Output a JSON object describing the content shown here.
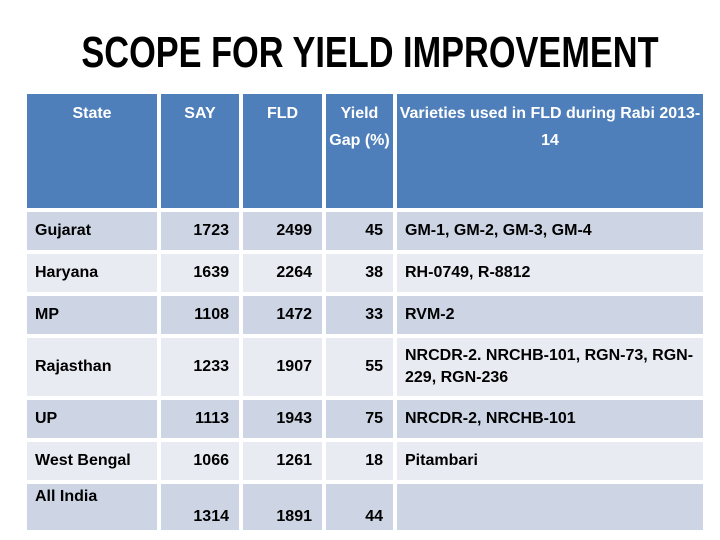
{
  "slide": {
    "title": "SCOPE FOR YIELD IMPROVEMENT"
  },
  "table": {
    "header": {
      "state": "State",
      "say": "SAY",
      "fld": "FLD",
      "yield_gap": "Yield Gap (%)",
      "varieties": "Varieties used in FLD during Rabi 2013-14"
    },
    "rows": [
      {
        "state": "Gujarat",
        "say": "1723",
        "fld": "2499",
        "yield_gap": "45",
        "varieties": "GM-1, GM-2, GM-3, GM-4"
      },
      {
        "state": "Haryana",
        "say": "1639",
        "fld": "2264",
        "yield_gap": "38",
        "varieties": "RH-0749, R-8812"
      },
      {
        "state": "MP",
        "say": "1108",
        "fld": "1472",
        "yield_gap": "33",
        "varieties": "RVM-2"
      },
      {
        "state": "Rajasthan",
        "say": "1233",
        "fld": "1907",
        "yield_gap": "55",
        "varieties": "NRCDR-2.  NRCHB-101,  RGN-73, RGN-229, RGN-236"
      },
      {
        "state": "UP",
        "say": "1113",
        "fld": "1943",
        "yield_gap": "75",
        "varieties": "NRCDR-2, NRCHB-101"
      },
      {
        "state": "West Bengal",
        "say": "1066",
        "fld": "1261",
        "yield_gap": "18",
        "varieties": "Pitambari"
      },
      {
        "state": "All India",
        "say": "1314",
        "fld": "1891",
        "yield_gap": "44",
        "varieties": ""
      }
    ]
  },
  "colors": {
    "header_bg": "#4F7FBA",
    "row_band_dark": "#CDD5E4",
    "row_band_light": "#E9EBF2",
    "header_text": "#FFFFFF",
    "body_text": "#000000",
    "title_text": "#000000"
  }
}
